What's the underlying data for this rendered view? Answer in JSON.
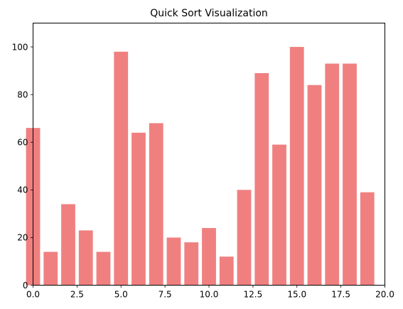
{
  "chart_data": {
    "type": "bar",
    "title": "Quick Sort Visualization",
    "xlabel": "",
    "ylabel": "",
    "x": [
      0,
      1,
      2,
      3,
      4,
      5,
      6,
      7,
      8,
      9,
      10,
      11,
      12,
      13,
      14,
      15,
      16,
      17,
      18,
      19
    ],
    "values": [
      66,
      14,
      34,
      23,
      14,
      98,
      64,
      68,
      20,
      18,
      24,
      12,
      40,
      89,
      59,
      100,
      84,
      93,
      93,
      39
    ],
    "bar_color": "#f08080",
    "xlim": [
      0,
      20
    ],
    "ylim": [
      0,
      110
    ],
    "xticks": [
      0,
      2.5,
      5,
      7.5,
      10,
      12.5,
      15,
      17.5,
      20
    ],
    "xtick_labels": [
      "0.0",
      "2.5",
      "5.0",
      "7.5",
      "10.0",
      "12.5",
      "15.0",
      "17.5",
      "20.0"
    ],
    "yticks": [
      0,
      20,
      40,
      60,
      80,
      100
    ],
    "ytick_labels": [
      "0",
      "20",
      "40",
      "60",
      "80",
      "100"
    ],
    "grid": false,
    "legend": "none"
  }
}
